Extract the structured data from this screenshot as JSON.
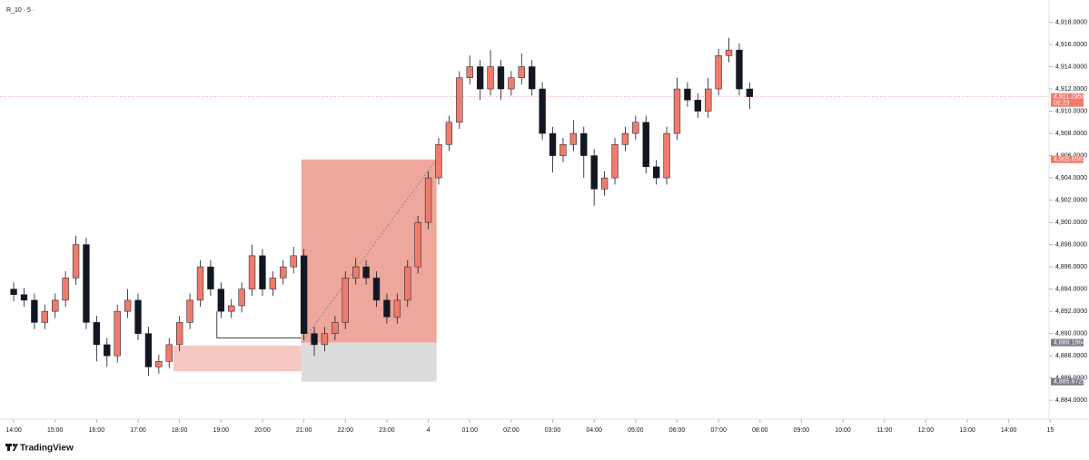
{
  "chart_data": {
    "type": "candlestick",
    "title": "R_10 · 5 ·",
    "brand": "TradingView",
    "x": [
      0,
      0.25,
      0.5,
      0.75,
      1,
      1.25,
      1.5,
      1.75,
      2,
      2.25,
      2.5,
      2.75,
      3,
      3.25,
      3.5,
      3.75,
      4,
      4.25,
      4.5,
      4.75,
      5,
      5.25,
      5.5,
      5.75,
      6,
      6.25,
      6.5,
      6.75,
      7,
      7.25,
      7.5,
      7.75,
      8,
      8.25,
      8.5,
      8.75,
      9,
      9.25,
      9.5,
      9.75,
      10,
      10.25,
      10.5,
      10.75,
      11,
      11.25,
      11.5,
      11.75,
      12,
      12.25,
      12.5,
      12.75,
      13,
      13.25,
      13.5,
      13.75,
      14,
      14.25,
      14.5,
      14.75,
      15,
      15.25,
      15.5,
      15.75,
      16,
      16.25,
      16.5,
      16.75,
      17,
      17.25,
      17.5,
      17.75
    ],
    "open": [
      4894,
      4893.5,
      4893,
      4891,
      4892,
      4893,
      4895,
      4898,
      4891,
      4889,
      4888,
      4892,
      4893,
      4890,
      4887,
      4887.5,
      4889,
      4891,
      4893,
      4896,
      4894,
      4892,
      4892.5,
      4894,
      4897,
      4894,
      4895,
      4896,
      4897,
      4890,
      4889,
      4890,
      4891,
      4895,
      4896,
      4895,
      4893,
      4891.5,
      4893,
      4896,
      4900,
      4904,
      4907,
      4909,
      4913,
      4914,
      4912,
      4914,
      4912,
      4913,
      4914,
      4912,
      4908,
      4906,
      4907,
      4908,
      4906,
      4903,
      4904,
      4907,
      4908,
      4909,
      4905,
      4904,
      4908,
      4912,
      4911,
      4910,
      4912,
      4915,
      4915.5,
      4912
    ],
    "high": [
      4894.6,
      4894.1,
      4893.6,
      4892.6,
      4893.6,
      4895.6,
      4898.8,
      4898.6,
      4891.6,
      4889.6,
      4892.6,
      4894,
      4893.6,
      4890.6,
      4888.1,
      4889.6,
      4891.6,
      4893.6,
      4896.6,
      4896.6,
      4894.6,
      4893.1,
      4894.6,
      4898,
      4897.6,
      4895.6,
      4896.6,
      4897.8,
      4897.6,
      4890.6,
      4890.6,
      4891.6,
      4895.6,
      4896.8,
      4896.6,
      4895.6,
      4893.6,
      4893.6,
      4896.6,
      4900.6,
      4904.6,
      4907.6,
      4909.6,
      4913.6,
      4915,
      4914.6,
      4915.5,
      4914.6,
      4913.6,
      4915.2,
      4914.6,
      4912.6,
      4908.6,
      4907.6,
      4909.2,
      4908.6,
      4906.6,
      4904.6,
      4907.6,
      4908.6,
      4909.6,
      4909.6,
      4905.6,
      4908.6,
      4913,
      4912.6,
      4911.6,
      4913,
      4915.6,
      4916.6,
      4916.1,
      4912.6
    ],
    "low": [
      4892.9,
      4892.4,
      4890.4,
      4890.4,
      4891.4,
      4892.4,
      4894.4,
      4890.4,
      4887.5,
      4887,
      4887.4,
      4891.4,
      4889.4,
      4886.2,
      4886.4,
      4886.9,
      4888.4,
      4890.4,
      4892.4,
      4893.4,
      4891.4,
      4891.4,
      4891.9,
      4893.4,
      4893.4,
      4893.4,
      4894.4,
      4895.4,
      4889.4,
      4888,
      4888.4,
      4889.4,
      4890.4,
      4894.4,
      4894.4,
      4892.4,
      4890.9,
      4890.9,
      4892.4,
      4895.4,
      4899.4,
      4903.4,
      4906.4,
      4908.4,
      4912.4,
      4911,
      4911.4,
      4911,
      4911.4,
      4912.4,
      4911.4,
      4907.4,
      4904.5,
      4905.4,
      4906.4,
      4904,
      4901.5,
      4902.4,
      4903.4,
      4906.4,
      4907.4,
      4904.4,
      4903.4,
      4903.4,
      4907.4,
      4910.4,
      4909.4,
      4909.4,
      4911.4,
      4914.4,
      4911.4,
      4910.2
    ],
    "close": [
      4893.5,
      4893,
      4891,
      4892,
      4893,
      4895,
      4898,
      4891,
      4889,
      4888,
      4892,
      4893,
      4890,
      4887,
      4887.5,
      4889,
      4891,
      4893,
      4896,
      4894,
      4892,
      4892.5,
      4894,
      4897,
      4894,
      4895,
      4896,
      4897,
      4890,
      4889,
      4890,
      4891,
      4895,
      4896,
      4895,
      4893,
      4891.5,
      4893,
      4896,
      4900,
      4904,
      4907,
      4909,
      4913,
      4914,
      4912,
      4914,
      4912,
      4913,
      4914,
      4912,
      4908,
      4906,
      4907,
      4908,
      4906,
      4903,
      4904,
      4907,
      4908,
      4909,
      4905,
      4904,
      4908,
      4912,
      4911,
      4910,
      4912,
      4915,
      4915.5,
      4912,
      4911.3
    ],
    "up_color": "#ef7b6c",
    "down_color": "#131722",
    "xlim": [
      -0.33,
      25.08
    ],
    "xticks": [
      {
        "value": 0,
        "label": "14:00"
      },
      {
        "value": 1,
        "label": "15:00"
      },
      {
        "value": 2,
        "label": "16:00"
      },
      {
        "value": 3,
        "label": "17:00"
      },
      {
        "value": 4,
        "label": "18:00"
      },
      {
        "value": 5,
        "label": "19:00"
      },
      {
        "value": 6,
        "label": "20:00"
      },
      {
        "value": 7,
        "label": "21:00"
      },
      {
        "value": 8,
        "label": "22:00"
      },
      {
        "value": 9,
        "label": "23:00"
      },
      {
        "value": 10,
        "label": "4"
      },
      {
        "value": 11,
        "label": "01:00"
      },
      {
        "value": 12,
        "label": "02:00"
      },
      {
        "value": 13,
        "label": "03:00"
      },
      {
        "value": 14,
        "label": "04:00"
      },
      {
        "value": 15,
        "label": "05:00"
      },
      {
        "value": 16,
        "label": "06:00"
      },
      {
        "value": 17,
        "label": "07:00"
      },
      {
        "value": 18,
        "label": "08:00"
      },
      {
        "value": 19,
        "label": "09:00"
      },
      {
        "value": 20,
        "label": "10:00"
      },
      {
        "value": 21,
        "label": "11:00"
      },
      {
        "value": 22,
        "label": "12:00"
      },
      {
        "value": 23,
        "label": "13:00"
      },
      {
        "value": 24,
        "label": "14:00"
      },
      {
        "value": 25,
        "label": "15"
      }
    ],
    "ylim": [
      4882.3,
      4920
    ],
    "yticks": [
      {
        "value": 4884,
        "label": "4,884.0000"
      },
      {
        "value": 4886,
        "label": "4,886.0000"
      },
      {
        "value": 4888,
        "label": "4,888.0000"
      },
      {
        "value": 4890,
        "label": "4,890.0000"
      },
      {
        "value": 4892,
        "label": "4,892.0000"
      },
      {
        "value": 4894,
        "label": "4,894.0000"
      },
      {
        "value": 4896,
        "label": "4,896.0000"
      },
      {
        "value": 4898,
        "label": "4,898.0000"
      },
      {
        "value": 4900,
        "label": "4,900.0000"
      },
      {
        "value": 4902,
        "label": "4,902.0000"
      },
      {
        "value": 4904,
        "label": "4,904.0000"
      },
      {
        "value": 4906,
        "label": "4,906.0000"
      },
      {
        "value": 4908,
        "label": "4,908.0000"
      },
      {
        "value": 4910,
        "label": "4,910.0000"
      },
      {
        "value": 4912,
        "label": "4,912.0000"
      },
      {
        "value": 4914,
        "label": "4,914.0000"
      },
      {
        "value": 4916,
        "label": "4,916.0000"
      },
      {
        "value": 4918,
        "label": "4,918.0000"
      }
    ],
    "price_labels": [
      {
        "value": 4911.295,
        "label": "4,911.2950",
        "sub": "02:23",
        "color": "#ef7b6c"
      },
      {
        "value": 4905.6582,
        "label": "4,905.6582",
        "color": "#ef7b6c"
      },
      {
        "value": 4889.1864,
        "label": "4,889.1864",
        "color": "#787b86"
      },
      {
        "value": 4885.6725,
        "label": "4,885.6725",
        "color": "#787b86"
      }
    ],
    "position": {
      "x": [
        6.94,
        10.2
      ],
      "stop": 4905.6582,
      "entry": 4889.1864,
      "target": 4885.6725,
      "stop_color": "#eea79c",
      "target_color": "#dcdcdc"
    },
    "zone": {
      "x": [
        3.85,
        6.94
      ],
      "y": [
        4886.6,
        4888.9
      ],
      "color": "#f6c8c2"
    },
    "hline": {
      "x": [
        4.9,
        6.94
      ],
      "y": 4889.6,
      "from": 4892
    }
  }
}
